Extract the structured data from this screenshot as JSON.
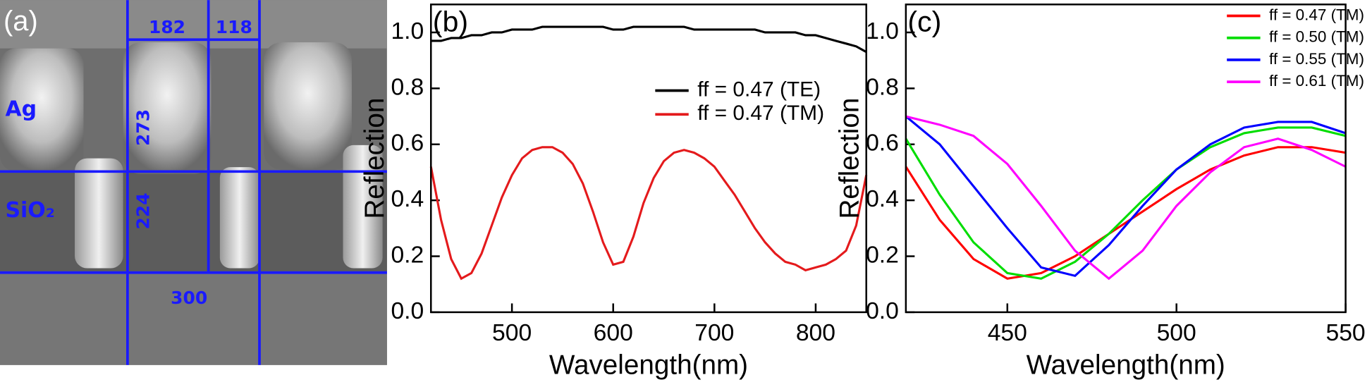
{
  "panel_a": {
    "label": "(a)",
    "labels": [
      "182",
      "118",
      "Ag",
      "273",
      "SiO₂",
      "224",
      "300"
    ]
  },
  "chart_data": [
    {
      "type": "line",
      "panel_label": "(b)",
      "xlabel": "Wavelength(nm)",
      "ylabel": "Reflection",
      "x": [
        420,
        430,
        440,
        450,
        460,
        470,
        480,
        490,
        500,
        510,
        520,
        530,
        540,
        550,
        560,
        570,
        580,
        590,
        600,
        610,
        620,
        630,
        640,
        650,
        660,
        670,
        680,
        690,
        700,
        710,
        720,
        730,
        740,
        750,
        760,
        770,
        780,
        790,
        800,
        810,
        820,
        830,
        840,
        850
      ],
      "xlim": [
        420,
        850
      ],
      "ylim": [
        0,
        1.1
      ],
      "xticks": [
        500,
        600,
        700,
        800
      ],
      "yticks": [
        {
          "value": 0,
          "label": "0.0"
        },
        0.2,
        0.4,
        0.6,
        0.8,
        {
          "value": 1,
          "label": "1.0"
        }
      ],
      "legend": "right",
      "legend_font": 24,
      "series": [
        {
          "name": "ff = 0.47 (TE)",
          "color": "#000000",
          "values": [
            0.97,
            0.97,
            0.98,
            0.98,
            0.99,
            0.99,
            1.0,
            1.0,
            1.01,
            1.01,
            1.01,
            1.02,
            1.02,
            1.02,
            1.02,
            1.02,
            1.02,
            1.02,
            1.01,
            1.01,
            1.02,
            1.02,
            1.02,
            1.02,
            1.02,
            1.02,
            1.01,
            1.01,
            1.01,
            1.01,
            1.01,
            1.01,
            1.01,
            1.0,
            1.0,
            1.0,
            1.0,
            0.99,
            0.99,
            0.98,
            0.97,
            0.96,
            0.95,
            0.93
          ]
        },
        {
          "name": "ff = 0.47 (TM)",
          "color": "#e41a1c",
          "values": [
            0.52,
            0.33,
            0.19,
            0.12,
            0.14,
            0.21,
            0.31,
            0.41,
            0.49,
            0.55,
            0.58,
            0.59,
            0.59,
            0.57,
            0.53,
            0.46,
            0.36,
            0.25,
            0.17,
            0.18,
            0.27,
            0.39,
            0.48,
            0.54,
            0.57,
            0.58,
            0.57,
            0.55,
            0.52,
            0.47,
            0.42,
            0.36,
            0.3,
            0.25,
            0.21,
            0.18,
            0.17,
            0.15,
            0.16,
            0.17,
            0.19,
            0.22,
            0.31,
            0.49
          ]
        }
      ]
    },
    {
      "type": "line",
      "panel_label": "(c)",
      "xlabel": "Wavelength(nm)",
      "ylabel": "Reflection",
      "x": [
        420,
        430,
        440,
        450,
        460,
        470,
        480,
        490,
        500,
        510,
        520,
        530,
        540,
        550
      ],
      "xlim": [
        420,
        550
      ],
      "ylim": [
        0,
        1.1
      ],
      "xticks": [
        450,
        500,
        550
      ],
      "yticks": [
        {
          "value": 0,
          "label": "0.0"
        },
        0.2,
        0.4,
        0.6,
        0.8,
        {
          "value": 1,
          "label": "1.0"
        }
      ],
      "legend": "upper right",
      "legend_font": 18,
      "series": [
        {
          "name": "ff = 0.47 (TM)",
          "color": "#ff0000",
          "values": [
            0.52,
            0.33,
            0.19,
            0.12,
            0.14,
            0.2,
            0.28,
            0.36,
            0.44,
            0.51,
            0.56,
            0.59,
            0.59,
            0.57
          ]
        },
        {
          "name": "ff = 0.50 (TM)",
          "color": "#00dd00",
          "values": [
            0.62,
            0.42,
            0.25,
            0.14,
            0.12,
            0.18,
            0.28,
            0.4,
            0.51,
            0.59,
            0.64,
            0.66,
            0.66,
            0.63
          ]
        },
        {
          "name": "ff = 0.55 (TM)",
          "color": "#0000ff",
          "values": [
            0.7,
            0.6,
            0.45,
            0.3,
            0.16,
            0.13,
            0.24,
            0.38,
            0.51,
            0.6,
            0.66,
            0.68,
            0.68,
            0.64
          ]
        },
        {
          "name": "ff = 0.61 (TM)",
          "color": "#ff00ff",
          "values": [
            0.7,
            0.67,
            0.63,
            0.53,
            0.38,
            0.22,
            0.12,
            0.22,
            0.38,
            0.5,
            0.59,
            0.62,
            0.58,
            0.52
          ]
        }
      ]
    }
  ]
}
